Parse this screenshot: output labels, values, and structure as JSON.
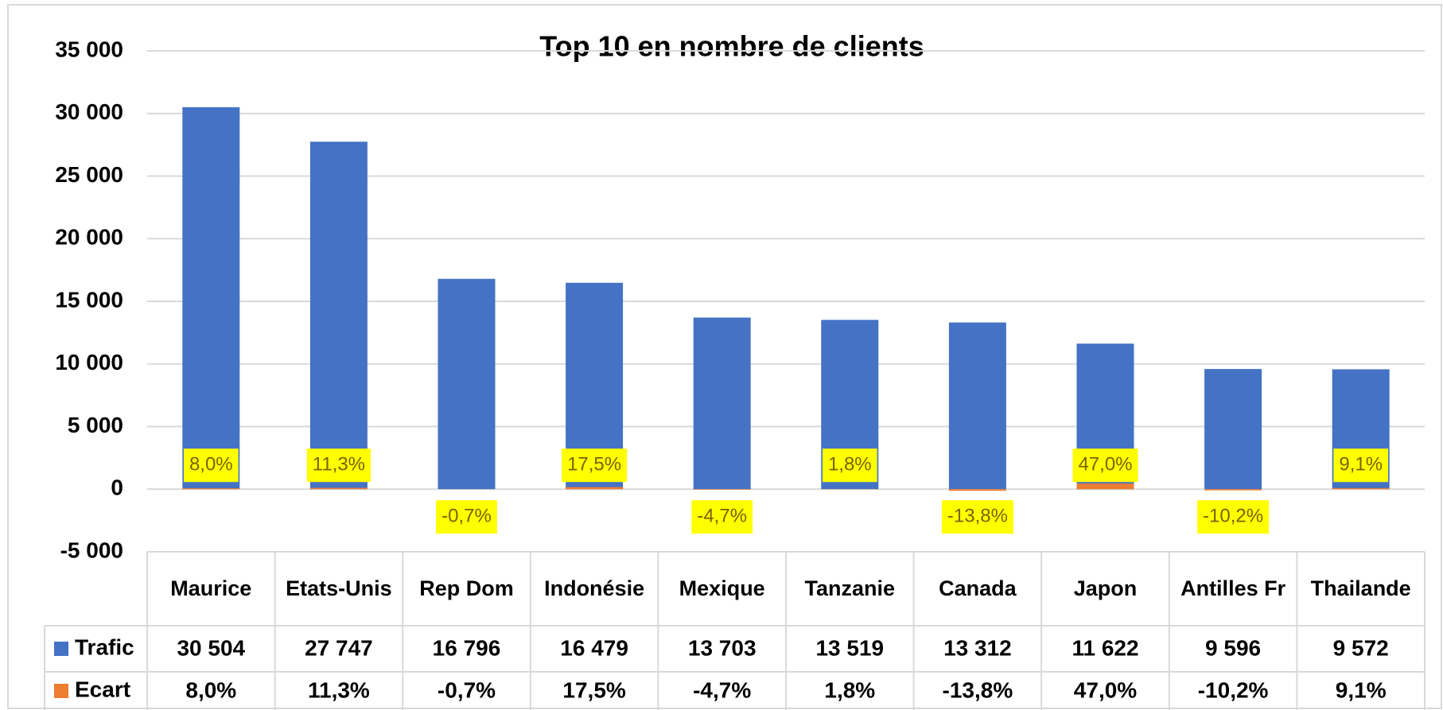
{
  "chart_data": {
    "type": "bar",
    "title": "Top 10 en nombre de clients",
    "categories": [
      "Maurice",
      "Etats-Unis",
      "Rep Dom",
      "Indonésie",
      "Mexique",
      "Tanzanie",
      "Canada",
      "Japon",
      "Antilles Fr",
      "Thailande"
    ],
    "series": [
      {
        "name": "Trafic",
        "color": "#4472c4",
        "values": [
          30504,
          27747,
          16796,
          16479,
          13703,
          13519,
          13312,
          11622,
          9596,
          9572
        ],
        "value_labels": [
          "30 504",
          "27 747",
          "16 796",
          "16 479",
          "13 703",
          "13 519",
          "13 312",
          "11 622",
          "9 596",
          "9 572"
        ]
      },
      {
        "name": "Ecart",
        "color": "#ed7d31",
        "axis": "y2",
        "values": [
          8.0,
          11.3,
          -0.7,
          17.5,
          -4.7,
          1.8,
          -13.8,
          47.0,
          -10.2,
          9.1
        ],
        "value_labels": [
          "8,0%",
          "11,3%",
          "-0,7%",
          "17,5%",
          "-4,7%",
          "1,8%",
          "-13,8%",
          "47,0%",
          "-10,2%",
          "9,1%"
        ]
      }
    ],
    "ylim": [
      -5000,
      35000
    ],
    "yticks": [
      {
        "value": -5000,
        "label": "-5 000"
      },
      0,
      {
        "value": 5000,
        "label": "5 000"
      },
      {
        "value": 10000,
        "label": "10 000"
      },
      {
        "value": 15000,
        "label": "15 000"
      },
      {
        "value": 20000,
        "label": "20 000"
      },
      {
        "value": 25000,
        "label": "25 000"
      },
      {
        "value": 30000,
        "label": "30 000"
      },
      {
        "value": 35000,
        "label": "35 000"
      }
    ],
    "grid": true,
    "data_table": true
  }
}
